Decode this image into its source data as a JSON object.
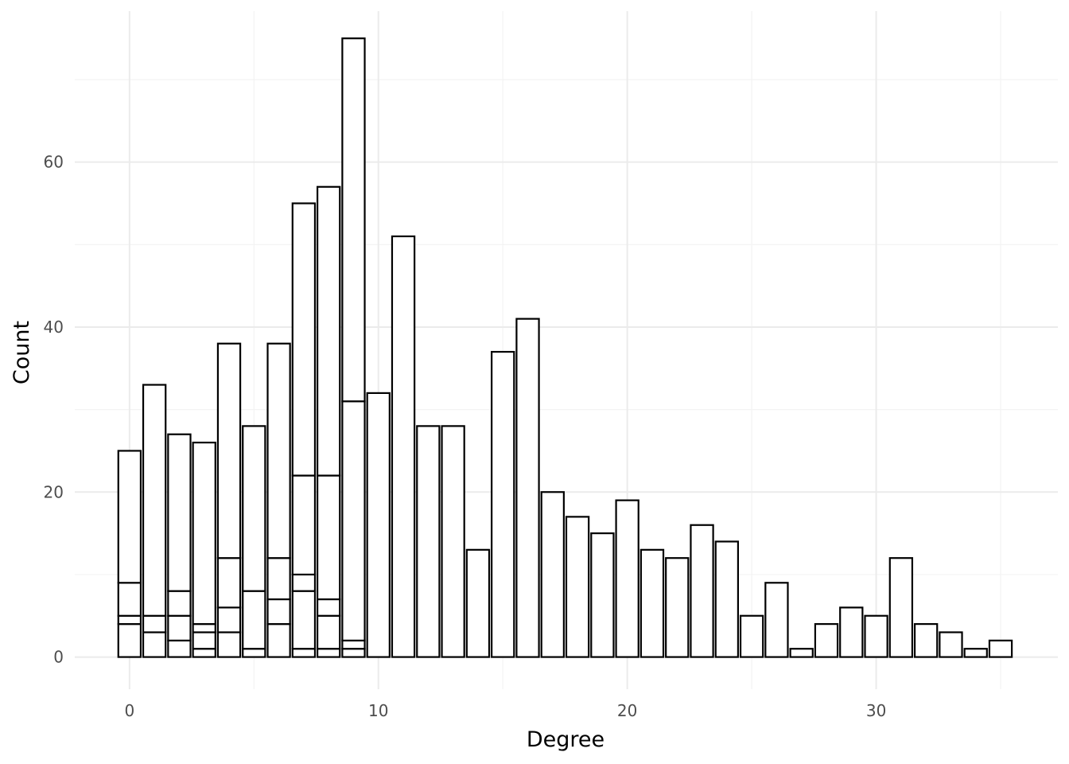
{
  "chart_data": {
    "type": "bar",
    "stacked": true,
    "title": "",
    "xlabel": "Degree",
    "ylabel": "Count",
    "xlim": [
      -2.2,
      37.3
    ],
    "ylim": [
      -3.9,
      78.3
    ],
    "xticks": [
      0,
      10,
      20,
      30
    ],
    "yticks": [
      0,
      20,
      40,
      60
    ],
    "grid": true,
    "legend": "none",
    "bar_colors": {
      "fill": "#ffffff",
      "outline": "#000000"
    },
    "bars": [
      {
        "x": 0,
        "segments": [
          4,
          1,
          4,
          16
        ]
      },
      {
        "x": 1,
        "segments": [
          3,
          2,
          28
        ]
      },
      {
        "x": 2,
        "segments": [
          2,
          3,
          3,
          19
        ]
      },
      {
        "x": 3,
        "segments": [
          1,
          2,
          1,
          22
        ]
      },
      {
        "x": 4,
        "segments": [
          3,
          3,
          6,
          26
        ]
      },
      {
        "x": 5,
        "segments": [
          1,
          7,
          20
        ]
      },
      {
        "x": 6,
        "segments": [
          4,
          3,
          5,
          26
        ]
      },
      {
        "x": 7,
        "segments": [
          1,
          7,
          2,
          12,
          33
        ]
      },
      {
        "x": 8,
        "segments": [
          1,
          4,
          2,
          15,
          35
        ]
      },
      {
        "x": 9,
        "segments": [
          1,
          1,
          29,
          44
        ]
      },
      {
        "x": 10,
        "segments": [
          32
        ]
      },
      {
        "x": 11,
        "segments": [
          51
        ]
      },
      {
        "x": 12,
        "segments": [
          28
        ]
      },
      {
        "x": 13,
        "segments": [
          28
        ]
      },
      {
        "x": 14,
        "segments": [
          13
        ]
      },
      {
        "x": 15,
        "segments": [
          37
        ]
      },
      {
        "x": 16,
        "segments": [
          41
        ]
      },
      {
        "x": 17,
        "segments": [
          20
        ]
      },
      {
        "x": 18,
        "segments": [
          17
        ]
      },
      {
        "x": 19,
        "segments": [
          15
        ]
      },
      {
        "x": 20,
        "segments": [
          19
        ]
      },
      {
        "x": 21,
        "segments": [
          13
        ]
      },
      {
        "x": 22,
        "segments": [
          12
        ]
      },
      {
        "x": 23,
        "segments": [
          16
        ]
      },
      {
        "x": 24,
        "segments": [
          14
        ]
      },
      {
        "x": 25,
        "segments": [
          5
        ]
      },
      {
        "x": 26,
        "segments": [
          9
        ]
      },
      {
        "x": 27,
        "segments": [
          1
        ]
      },
      {
        "x": 28,
        "segments": [
          4
        ]
      },
      {
        "x": 29,
        "segments": [
          6
        ]
      },
      {
        "x": 30,
        "segments": [
          5
        ]
      },
      {
        "x": 31,
        "segments": [
          12
        ]
      },
      {
        "x": 32,
        "segments": [
          4
        ]
      },
      {
        "x": 33,
        "segments": [
          3
        ]
      },
      {
        "x": 34,
        "segments": [
          1
        ]
      },
      {
        "x": 35,
        "segments": [
          2
        ]
      }
    ]
  }
}
